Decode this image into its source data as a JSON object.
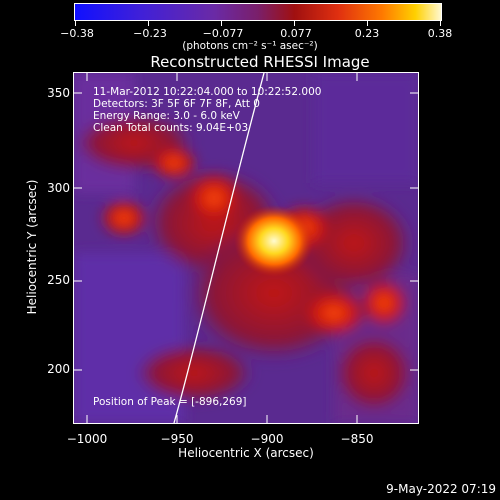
{
  "colorbar": {
    "tick_labels": [
      "−0.38",
      "−0.23",
      "−0.077",
      "0.077",
      "0.23",
      "0.38"
    ],
    "units": "(photons cm⁻² s⁻¹ asec⁻²)"
  },
  "title": "Reconstructed RHESSI Image",
  "info": {
    "time_range": "11-Mar-2012 10:22:04.000 to 10:22:52.000",
    "detectors": "Detectors: 3F 5F 6F 7F 8F, Att 0",
    "energy": "Energy Range: 3.0 - 6.0 keV",
    "clean": "Clean     Total counts: 9.04E+03",
    "peak": "Position of Peak = [-896,269]"
  },
  "axes": {
    "xlabel": "Heliocentric X (arcsec)",
    "ylabel": "Heliocentric Y (arcsec)",
    "x_ticks": [
      "−1000",
      "−950",
      "−900",
      "−850"
    ],
    "y_ticks": [
      "350",
      "300",
      "250",
      "200"
    ]
  },
  "timestamp": "9-May-2022 07:19",
  "colors": {
    "background": "#000000",
    "text": "#ffffff",
    "peak": "#fff8b0",
    "limb_line": "#ffffff"
  }
}
